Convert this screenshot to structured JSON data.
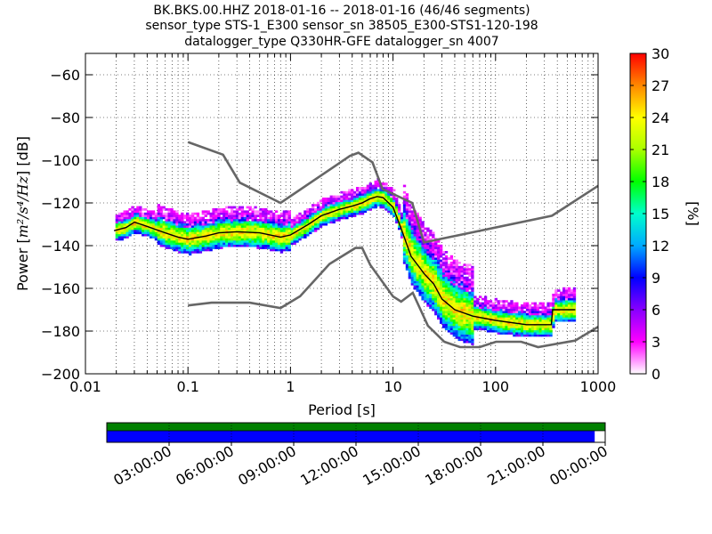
{
  "chart_data": {
    "type": "heatmap",
    "title_lines": [
      "BK.BKS.00.HHZ   2018-01-16 -- 2018-01-16  (46/46 segments)",
      "sensor_type STS-1_E300 sensor_sn 38505_E300-STS1-120-198",
      "datalogger_type Q330HR-GFE datalogger_sn 4007"
    ],
    "xlabel": "Period [s]",
    "ylabel_prefix": "Power [",
    "ylabel_math": "m²/s⁴/Hz",
    "ylabel_suffix": "] [dB]",
    "x_scale": "log",
    "xlim": [
      0.01,
      1000
    ],
    "ylim": [
      -200,
      -50
    ],
    "x_ticks": [
      {
        "value": 0.01,
        "label": "0.01"
      },
      {
        "value": 0.1,
        "label": "0.1"
      },
      {
        "value": 1,
        "label": "1"
      },
      {
        "value": 10,
        "label": "10"
      },
      {
        "value": 100,
        "label": "100"
      },
      {
        "value": 1000,
        "label": "1000"
      }
    ],
    "y_ticks": [
      {
        "value": -60,
        "label": "−60"
      },
      {
        "value": -80,
        "label": "−80"
      },
      {
        "value": -100,
        "label": "−100"
      },
      {
        "value": -120,
        "label": "−120"
      },
      {
        "value": -140,
        "label": "−140"
      },
      {
        "value": -160,
        "label": "−160"
      },
      {
        "value": -180,
        "label": "−180"
      },
      {
        "value": -200,
        "label": "−200"
      }
    ],
    "colorbar": {
      "label": "[%]",
      "range": [
        0,
        30
      ],
      "ticks": [
        {
          "value": 0,
          "label": "0"
        },
        {
          "value": 3,
          "label": "3"
        },
        {
          "value": 6,
          "label": "6"
        },
        {
          "value": 9,
          "label": "9"
        },
        {
          "value": 12,
          "label": "12"
        },
        {
          "value": 15,
          "label": "15"
        },
        {
          "value": 18,
          "label": "18"
        },
        {
          "value": 21,
          "label": "21"
        },
        {
          "value": 24,
          "label": "24"
        },
        {
          "value": 27,
          "label": "27"
        },
        {
          "value": 30,
          "label": "30"
        }
      ],
      "colors": [
        "#ffffff",
        "#ff00ff",
        "#8800ff",
        "#0000ff",
        "#00aaff",
        "#00ffcc",
        "#00ff00",
        "#aaff00",
        "#ffff00",
        "#ff8800",
        "#ff0000"
      ]
    },
    "model_lines": [
      {
        "name": "High Noise Model",
        "color": "#666666",
        "points": [
          [
            0.1,
            -91.5
          ],
          [
            0.22,
            -97.4
          ],
          [
            0.32,
            -110.5
          ],
          [
            0.8,
            -120
          ],
          [
            3.8,
            -98
          ],
          [
            4.6,
            -96.5
          ],
          [
            6.3,
            -101
          ],
          [
            7.9,
            -113.5
          ],
          [
            15.4,
            -120
          ],
          [
            20,
            -138.5
          ],
          [
            354.8,
            -126
          ],
          [
            1000,
            -112
          ]
        ]
      },
      {
        "name": "Low Noise Model",
        "color": "#666666",
        "points": [
          [
            0.1,
            -168
          ],
          [
            0.17,
            -166.7
          ],
          [
            0.4,
            -166.7
          ],
          [
            0.8,
            -169.2
          ],
          [
            1.24,
            -163.7
          ],
          [
            2.4,
            -148.6
          ],
          [
            4.3,
            -141.1
          ],
          [
            5,
            -141.1
          ],
          [
            6,
            -149
          ],
          [
            10,
            -163.8
          ],
          [
            12,
            -166.2
          ],
          [
            15.6,
            -162.1
          ],
          [
            21.9,
            -177.5
          ],
          [
            31.6,
            -185
          ],
          [
            45,
            -187.5
          ],
          [
            70,
            -187.5
          ],
          [
            101,
            -185
          ],
          [
            178,
            -185
          ],
          [
            260,
            -187.5
          ],
          [
            600,
            -184.4
          ],
          [
            1000,
            -178
          ]
        ]
      }
    ],
    "median_line": {
      "name": "Mean PSD",
      "color": "#000000",
      "points": [
        [
          0.019,
          -133
        ],
        [
          0.025,
          -131.5
        ],
        [
          0.03,
          -129
        ],
        [
          0.04,
          -131
        ],
        [
          0.06,
          -134
        ],
        [
          0.08,
          -136
        ],
        [
          0.1,
          -137
        ],
        [
          0.15,
          -135.5
        ],
        [
          0.2,
          -134
        ],
        [
          0.3,
          -133.5
        ],
        [
          0.5,
          -134
        ],
        [
          0.8,
          -136
        ],
        [
          1,
          -135
        ],
        [
          1.5,
          -130
        ],
        [
          2,
          -126
        ],
        [
          3,
          -123
        ],
        [
          4,
          -121.5
        ],
        [
          5,
          -120
        ],
        [
          6,
          -118
        ],
        [
          7,
          -117
        ],
        [
          8,
          -117.5
        ],
        [
          10,
          -122
        ],
        [
          12,
          -132
        ],
        [
          15,
          -145
        ],
        [
          18,
          -150
        ],
        [
          20,
          -153
        ],
        [
          25,
          -158
        ],
        [
          30,
          -165
        ],
        [
          40,
          -170
        ],
        [
          60,
          -173
        ],
        [
          100,
          -175
        ],
        [
          200,
          -177
        ],
        [
          350,
          -177
        ],
        [
          360,
          -170
        ],
        [
          600,
          -170
        ]
      ]
    },
    "x_axis_time_labels": [
      "03:00:00",
      "06:00:00",
      "09:00:00",
      "12:00:00",
      "15:00:00",
      "18:00:00",
      "21:00:00",
      "00:00:00"
    ],
    "coverage_bar": {
      "data_fraction": 0.979,
      "upper_color": "#008000",
      "lower_color": "#0000ff"
    }
  }
}
